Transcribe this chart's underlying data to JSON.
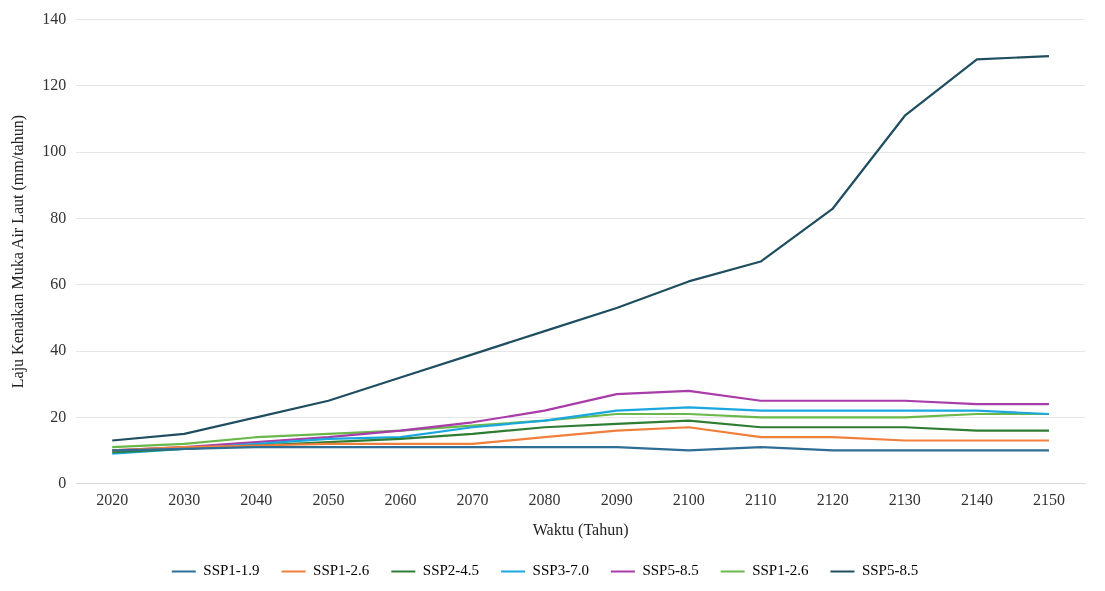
{
  "chart_data": {
    "type": "line",
    "xlabel": "Waktu (Tahun)",
    "ylabel": "Laju Kenaikan Muka Air Laut (mm/tahun)",
    "categories": [
      "2020",
      "2030",
      "2040",
      "2050",
      "2060",
      "2070",
      "2080",
      "2090",
      "2100",
      "2110",
      "2120",
      "2130",
      "2140",
      "2150"
    ],
    "ylim": [
      0,
      140
    ],
    "yticks": [
      0,
      20,
      40,
      60,
      80,
      100,
      120,
      140
    ],
    "grid": "y",
    "legend": "bottom",
    "marker": "none",
    "line_style": "solid",
    "series": [
      {
        "name": "SSP1-1.9",
        "color": "#2e6e96",
        "values": [
          10,
          10.5,
          11,
          11,
          11,
          11,
          11,
          11,
          10,
          11,
          10,
          10,
          10,
          10
        ]
      },
      {
        "name": "SSP1-2.6",
        "color": "#f07f3c",
        "values": [
          10,
          11,
          11.5,
          12,
          12,
          12,
          14,
          16,
          17,
          14,
          14,
          13,
          13,
          13
        ]
      },
      {
        "name": "SSP2-4.5",
        "color": "#2e7d32",
        "values": [
          9.5,
          10.5,
          11.5,
          12.5,
          13.5,
          15,
          17,
          18,
          19,
          17,
          17,
          17,
          16,
          16
        ]
      },
      {
        "name": "SSP3-7.0",
        "color": "#1aa7e0",
        "values": [
          9,
          10.5,
          12,
          13.5,
          14,
          17,
          19,
          22,
          23,
          22,
          22,
          22,
          22,
          21
        ]
      },
      {
        "name": "SSP5-8.5",
        "color": "#a83ca8",
        "values": [
          10,
          11,
          12.5,
          14,
          16,
          18.5,
          22,
          27,
          28,
          25,
          25,
          25,
          24,
          24
        ]
      },
      {
        "name": "SSP1-2.6",
        "color": "#6ab84a",
        "values": [
          11,
          12,
          14,
          15,
          16,
          17.5,
          19,
          21,
          21,
          20,
          20,
          20,
          21,
          21
        ]
      },
      {
        "name": "SSP5-8.5",
        "color": "#1f4e60",
        "values": [
          13,
          15,
          20,
          25,
          32,
          39,
          46,
          53,
          61,
          67,
          83,
          111,
          128,
          129
        ]
      }
    ]
  }
}
